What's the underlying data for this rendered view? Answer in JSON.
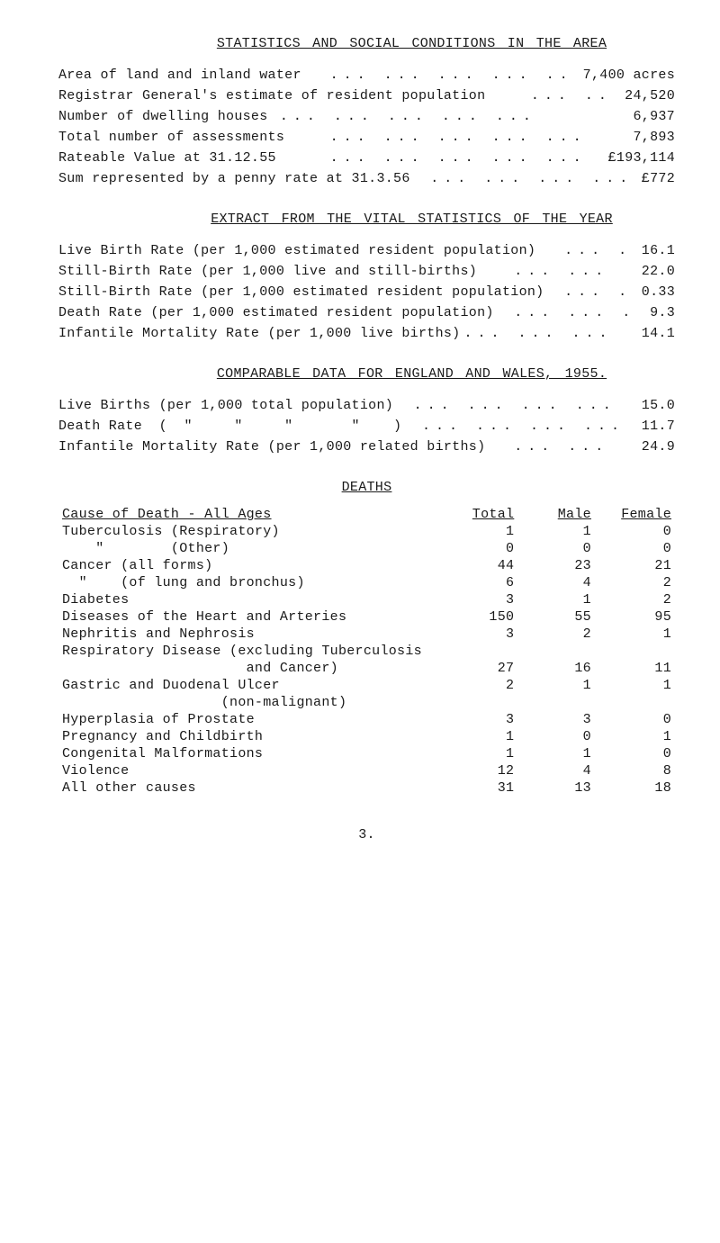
{
  "title_main": "STATISTICS  AND  SOCIAL  CONDITIONS  IN  THE  AREA",
  "area_lines": [
    {
      "label": "Area of land and inland water   ",
      "value": "7,400 acres"
    },
    {
      "label": "Registrar General's estimate of resident population     ",
      "value": "24,520"
    },
    {
      "label": "Number of dwelling houses ",
      "value": "6,937"
    },
    {
      "label": "Total number of assessments     ",
      "value": "7,893"
    },
    {
      "label": "Rateable Value at 31.12.55      ",
      "value": "£193,114"
    },
    {
      "label": "Sum represented by a penny rate at 31.3.56  ",
      "value": "£772"
    }
  ],
  "title_extract": "EXTRACT  FROM  THE  VITAL  STATISTICS  OF  THE  YEAR",
  "extract_lines": [
    {
      "label": "Live Birth Rate (per 1,000 estimated resident population)   ",
      "value": "16.1"
    },
    {
      "label": "Still-Birth Rate (per 1,000 live and still-births)    ",
      "value": "22.0"
    },
    {
      "label": "Still-Birth Rate (per 1,000 estimated resident population)  ",
      "value": "0.33"
    },
    {
      "label": "Death Rate (per 1,000 estimated resident population)  ",
      "value": "9.3"
    },
    {
      "label": "Infantile Mortality Rate (per 1,000 live births)",
      "value": "14.1"
    }
  ],
  "title_comparable": "COMPARABLE  DATA  FOR  ENGLAND  AND  WALES,  1955.",
  "comp_lines": [
    {
      "label": "Live Births (per 1,000 total population)  ",
      "value": "15.0"
    },
    {
      "label": "Death Rate  (  \"     \"     \"       \"    )  ",
      "value": "11.7"
    },
    {
      "label": "Infantile Mortality Rate (per 1,000 related births)   ",
      "value": "24.9"
    }
  ],
  "title_deaths": "DEATHS",
  "deaths_head_cause": "Cause of Death - All Ages",
  "deaths_head_total": "Total",
  "deaths_head_male": "Male",
  "deaths_head_female": "Female",
  "death_rows": [
    {
      "cause": "Tuberculosis (Respiratory)",
      "total": "1",
      "male": "1",
      "female": "0"
    },
    {
      "cause": "    \"        (Other)",
      "total": "0",
      "male": "0",
      "female": "0"
    },
    {
      "cause": "Cancer (all forms)",
      "total": "44",
      "male": "23",
      "female": "21"
    },
    {
      "cause": "  \"    (of lung and bronchus)",
      "total": "6",
      "male": "4",
      "female": "2"
    },
    {
      "cause": "Diabetes",
      "total": "3",
      "male": "1",
      "female": "2"
    },
    {
      "cause": "Diseases of the Heart and Arteries",
      "total": "150",
      "male": "55",
      "female": "95"
    },
    {
      "cause": "Nephritis and Nephrosis",
      "total": "3",
      "male": "2",
      "female": "1"
    },
    {
      "cause": "Respiratory Disease (excluding Tuberculosis",
      "total": "",
      "male": "",
      "female": ""
    },
    {
      "cause": "                      and Cancer)",
      "total": "27",
      "male": "16",
      "female": "11"
    },
    {
      "cause": "Gastric and Duodenal Ulcer",
      "total": "2",
      "male": "1",
      "female": "1"
    },
    {
      "cause": "                   (non-malignant)",
      "total": "",
      "male": "",
      "female": ""
    },
    {
      "cause": "Hyperplasia of Prostate",
      "total": "3",
      "male": "3",
      "female": "0"
    },
    {
      "cause": "Pregnancy and Childbirth",
      "total": "1",
      "male": "0",
      "female": "1"
    },
    {
      "cause": "Congenital Malformations",
      "total": "1",
      "male": "1",
      "female": "0"
    },
    {
      "cause": "Violence",
      "total": "12",
      "male": "4",
      "female": "8"
    },
    {
      "cause": "All other causes",
      "total": "31",
      "male": "13",
      "female": "18"
    }
  ],
  "page_number": "3.",
  "col_widths": {
    "cause": "62%",
    "total": "12.5%",
    "male": "12.5%",
    "female": "13%"
  }
}
